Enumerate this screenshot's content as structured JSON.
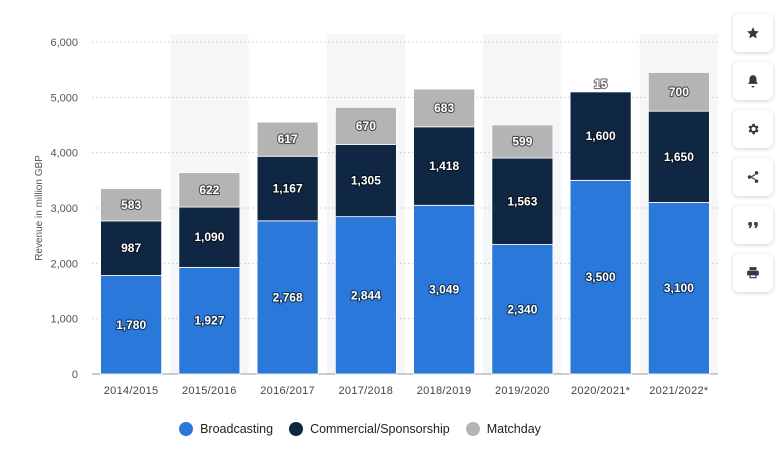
{
  "chart_data": {
    "type": "bar",
    "stacked": true,
    "categories": [
      "2014/2015",
      "2015/2016",
      "2016/2017",
      "2017/2018",
      "2018/2019",
      "2019/2020",
      "2020/2021*",
      "2021/2022*"
    ],
    "series": [
      {
        "name": "Broadcasting",
        "color": "#2a78d9",
        "values": [
          1780,
          1927,
          2768,
          2844,
          3049,
          2340,
          3500,
          3100
        ]
      },
      {
        "name": "Commercial/Sponsorship",
        "color": "#0f2743",
        "values": [
          987,
          1090,
          1167,
          1305,
          1418,
          1563,
          1600,
          1650
        ]
      },
      {
        "name": "Matchday",
        "color": "#b4b4b4",
        "values": [
          583,
          622,
          617,
          670,
          683,
          599,
          15,
          700
        ]
      }
    ],
    "data_labels": [
      [
        "1,780",
        "1,927",
        "2,768",
        "2,844",
        "3,049",
        "2,340",
        "3,500",
        "3,100"
      ],
      [
        "987",
        "1,090",
        "1,167",
        "1,305",
        "1,418",
        "1,563",
        "1,600",
        "1,650"
      ],
      [
        "583",
        "622",
        "617",
        "670",
        "683",
        "599",
        "15",
        "700"
      ]
    ],
    "yticks": [
      0,
      1000,
      2000,
      3000,
      4000,
      5000,
      6000
    ],
    "ytick_labels": [
      "0",
      "1,000",
      "2,000",
      "3,000",
      "4,000",
      "5,000",
      "6,000"
    ],
    "ylabel": "Revenue in million GBP",
    "xlabel": "",
    "ylim": [
      0,
      6000
    ],
    "grid": true,
    "legend_position": "bottom"
  },
  "toolbar": {
    "icons": [
      "star-icon",
      "bell-icon",
      "gear-icon",
      "share-icon",
      "quote-icon",
      "print-icon"
    ]
  }
}
